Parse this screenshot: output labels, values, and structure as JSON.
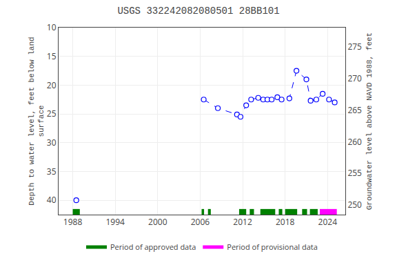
{
  "chart_data": {
    "type": "line",
    "title": "USGS 332242082080501 28BB101",
    "ylabel": "Depth to water level, feet below land\nsurface",
    "y2label": "Groundwater level above NAVD 1988, feet",
    "xlim": [
      1986.0,
      2026.5
    ],
    "xticks": [
      1988,
      1994,
      2000,
      2006,
      2012,
      2018,
      2024
    ],
    "ylim": [
      42.5,
      10.0
    ],
    "yticks": [
      10,
      15,
      20,
      25,
      30,
      35,
      40
    ],
    "y2lim": [
      248.5,
      278.0
    ],
    "y2ticks": [
      250,
      255,
      260,
      265,
      270,
      275
    ],
    "grid": true,
    "legend": "bottom",
    "series": [
      {
        "type": "line",
        "color": "blue",
        "line_style": "dashed",
        "marker": "circle",
        "x": [
          1988.5
        ],
        "values": [
          40.0
        ]
      },
      {
        "type": "line",
        "color": "blue",
        "line_style": "dashed",
        "marker": "circle",
        "x": [
          2006.5,
          2008.5,
          2011.2,
          2011.7,
          2012.5,
          2013.2,
          2014.2,
          2014.9,
          2015.5,
          2016.1,
          2016.9,
          2017.5,
          2018.6,
          2019.6,
          2021.0,
          2021.6,
          2022.4,
          2023.3,
          2024.2,
          2025.0
        ],
        "values": [
          22.5,
          24.0,
          25.1,
          25.5,
          23.5,
          22.5,
          22.2,
          22.5,
          22.5,
          22.5,
          22.1,
          22.5,
          22.3,
          17.5,
          19.0,
          22.7,
          22.5,
          21.5,
          22.5,
          23.0
        ]
      },
      {
        "type": "span",
        "name": "Period of approved data",
        "color": "#008000",
        "ranges": [
          [
            1988.0,
            1989.0
          ],
          [
            2006.2,
            2006.55
          ],
          [
            2007.1,
            2007.5
          ],
          [
            2011.5,
            2012.5
          ],
          [
            2013.0,
            2013.6
          ],
          [
            2014.5,
            2016.6
          ],
          [
            2017.1,
            2017.6
          ],
          [
            2018.0,
            2019.7
          ],
          [
            2020.4,
            2021.1
          ],
          [
            2021.5,
            2022.6
          ]
        ]
      },
      {
        "type": "span",
        "name": "Period of provisional data",
        "color": "#ff00ff",
        "ranges": [
          [
            2022.9,
            2025.3
          ]
        ]
      }
    ]
  }
}
